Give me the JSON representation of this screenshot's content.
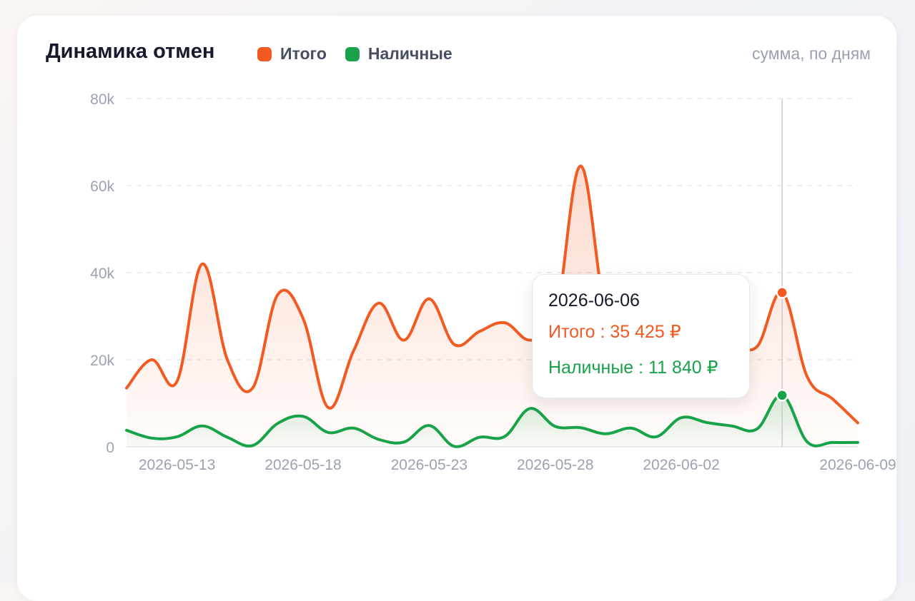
{
  "card": {
    "title": "Динамика отмен",
    "subtitle": "сумма, по дням"
  },
  "colors": {
    "total": "#f25a22",
    "cash": "#18a34a",
    "grid": "#e6e9ef",
    "axis_text": "#9aa2b3"
  },
  "legend": [
    {
      "label": "Итого",
      "color": "#f25a22"
    },
    {
      "label": "Наличные",
      "color": "#18a34a"
    }
  ],
  "tooltip": {
    "date": "2026-06-06",
    "total_label": "Итого",
    "total_value": "35 425 ₽",
    "total_text": "Итого : 35 425 ₽",
    "cash_label": "Наличные",
    "cash_value": "11 840 ₽",
    "cash_text": "Наличные : 11 840 ₽"
  },
  "chart_data": {
    "type": "area",
    "x": [
      "2026-05-11",
      "2026-05-12",
      "2026-05-13",
      "2026-05-14",
      "2026-05-15",
      "2026-05-16",
      "2026-05-17",
      "2026-05-18",
      "2026-05-19",
      "2026-05-20",
      "2026-05-21",
      "2026-05-22",
      "2026-05-23",
      "2026-05-24",
      "2026-05-25",
      "2026-05-26",
      "2026-05-27",
      "2026-05-28",
      "2026-05-29",
      "2026-05-30",
      "2026-05-31",
      "2026-06-01",
      "2026-06-02",
      "2026-06-03",
      "2026-06-04",
      "2026-06-05",
      "2026-06-06",
      "2026-06-07",
      "2026-06-08",
      "2026-06-09"
    ],
    "x_ticks": [
      "2026-05-13",
      "2026-05-18",
      "2026-05-23",
      "2026-05-28",
      "2026-06-02",
      "2026-06-09"
    ],
    "y_ticks": [
      "0",
      "20k",
      "40k",
      "60k",
      "80k"
    ],
    "ylim": [
      0,
      80000
    ],
    "grid": true,
    "series": [
      {
        "name": "Итого",
        "color": "#f25a22",
        "values": [
          13500,
          20000,
          15000,
          42000,
          20000,
          13500,
          35000,
          29500,
          9000,
          22000,
          33000,
          24500,
          34000,
          23500,
          26500,
          28500,
          24500,
          29000,
          64500,
          31000,
          26500,
          24500,
          26000,
          25000,
          24000,
          23000,
          35425,
          16000,
          11000,
          5500
        ]
      },
      {
        "name": "Наличные",
        "color": "#18a34a",
        "values": [
          3800,
          2000,
          2300,
          4800,
          2200,
          300,
          5400,
          7000,
          3300,
          4300,
          1700,
          1100,
          4900,
          100,
          2200,
          2400,
          8800,
          4700,
          4400,
          3000,
          4300,
          2300,
          6700,
          5600,
          4800,
          4100,
          11840,
          1100,
          1000,
          1000
        ]
      }
    ],
    "highlight": {
      "x": "2026-06-06"
    }
  }
}
